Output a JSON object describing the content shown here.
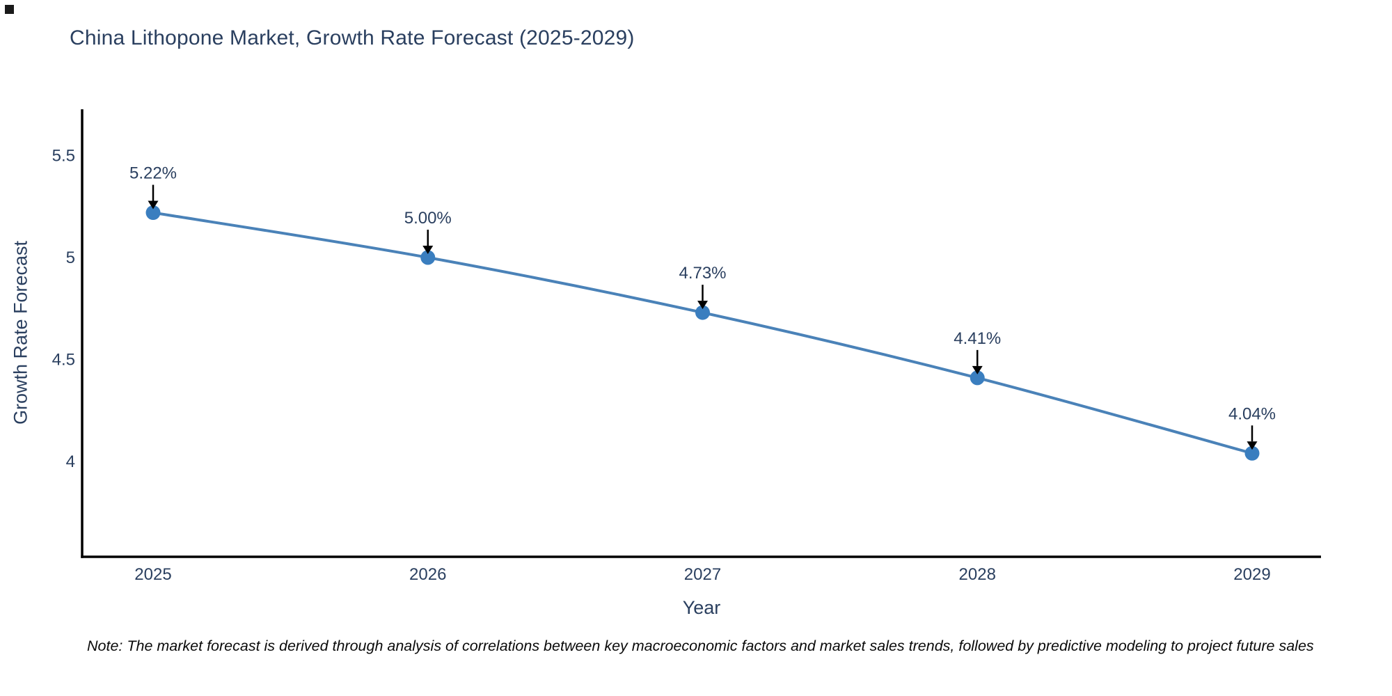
{
  "title": "China Lithopone Market, Growth Rate Forecast (2025-2029)",
  "note": "Note: The market forecast is derived through analysis of correlations between key macroeconomic factors and market sales trends, followed by predictive modeling to project future sales",
  "chart_data": {
    "type": "line",
    "title": "China Lithopone Market, Growth Rate Forecast (2025-2029)",
    "categories": [
      "2025",
      "2026",
      "2027",
      "2028",
      "2029"
    ],
    "series": [
      {
        "name": "Growth Rate Forecast",
        "values": [
          5.22,
          5.0,
          4.73,
          4.41,
          4.04
        ]
      }
    ],
    "point_labels": [
      "5.22%",
      "5.00%",
      "4.73%",
      "4.41%",
      "4.04%"
    ],
    "xlabel": "Year",
    "ylabel": "Growth Rate Forecast",
    "y_ticks": [
      5.5,
      5,
      4.5,
      4
    ],
    "y_tick_labels": [
      "5.5",
      "5",
      "4.5",
      "4"
    ],
    "ylim": [
      3.53,
      5.72
    ],
    "grid": false,
    "legend_visible": false,
    "line_shape": "spline",
    "colors": {
      "line": "#4a82b8",
      "marker": "#3a7ebf",
      "axis": "#000000",
      "tick_text": "#2a3f5f",
      "annotation_text": "#2a3f5f",
      "annotation_arrow": "#000000"
    }
  }
}
